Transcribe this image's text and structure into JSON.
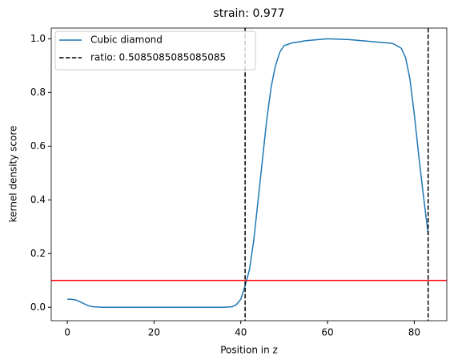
{
  "chart_data": {
    "type": "line",
    "title": "strain: 0.977",
    "xlabel": "Position in z",
    "ylabel": "kernel density score",
    "x": [
      0,
      1,
      2,
      3,
      4,
      5,
      6,
      8,
      10,
      20,
      30,
      36,
      38,
      39,
      40,
      41,
      42,
      43,
      44,
      45,
      46,
      47,
      48,
      49,
      50,
      52,
      55,
      60,
      65,
      70,
      75,
      77,
      78,
      79,
      80,
      81,
      82,
      83,
      83.2
    ],
    "series": [
      {
        "name": "Cubic diamond",
        "color": "#1f77b4",
        "values": [
          0.03,
          0.03,
          0.027,
          0.02,
          0.012,
          0.005,
          0.002,
          0,
          0,
          0,
          0,
          0,
          0.002,
          0.01,
          0.03,
          0.08,
          0.14,
          0.25,
          0.4,
          0.55,
          0.7,
          0.82,
          0.9,
          0.95,
          0.975,
          0.985,
          0.993,
          1.0,
          0.997,
          0.99,
          0.983,
          0.965,
          0.93,
          0.85,
          0.72,
          0.57,
          0.43,
          0.3,
          0.27
        ]
      }
    ],
    "vlines": {
      "name": "ratio: 0.5085085085085085",
      "color": "#000000",
      "x": [
        41.0,
        83.2
      ]
    },
    "hline": {
      "value": 0.1,
      "color": "#ff0000"
    },
    "xlim": [
      -3.7,
      87.5
    ],
    "ylim": [
      -0.05,
      1.04
    ],
    "xticks": [
      0,
      20,
      40,
      60,
      80
    ],
    "yticks": [
      {
        "value": 0,
        "label": "0.0"
      },
      {
        "value": 0.2,
        "label": "0.2"
      },
      {
        "value": 0.4,
        "label": "0.4"
      },
      {
        "value": 0.6,
        "label": "0.6"
      },
      {
        "value": 0.8,
        "label": "0.8"
      },
      {
        "value": 1,
        "label": "1.0"
      }
    ],
    "legend": "upper left"
  }
}
